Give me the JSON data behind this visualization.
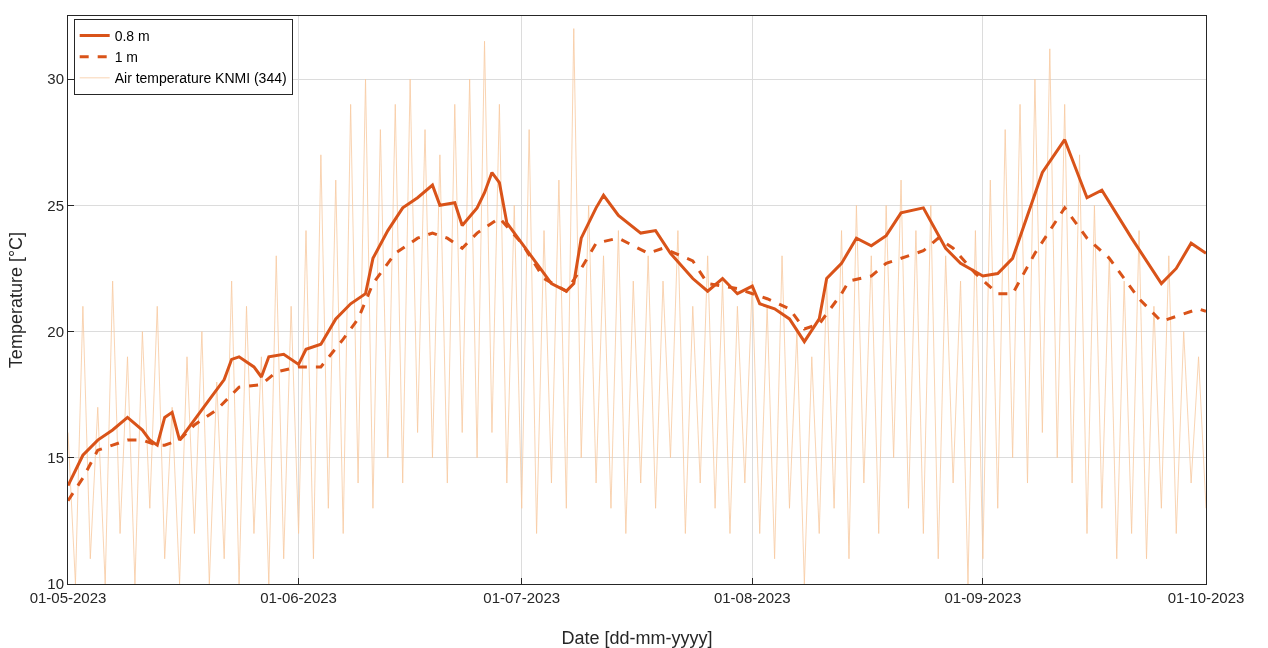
{
  "chart_data": {
    "type": "line",
    "xlabel": "Date [dd-mm-yyyy]",
    "ylabel": "Temperature [°C]",
    "xlim": [
      "2023-05-01",
      "2023-10-01"
    ],
    "xticks": [
      {
        "value": "2023-05-01",
        "label": "01-05-2023"
      },
      {
        "value": "2023-06-01",
        "label": "01-06-2023"
      },
      {
        "value": "2023-07-01",
        "label": "01-07-2023"
      },
      {
        "value": "2023-08-01",
        "label": "01-08-2023"
      },
      {
        "value": "2023-09-01",
        "label": "01-09-2023"
      },
      {
        "value": "2023-10-01",
        "label": "01-10-2023"
      }
    ],
    "ylim": [
      10,
      32.5
    ],
    "yticks": [
      10,
      15,
      20,
      25,
      30
    ],
    "grid": true,
    "legend": "top left",
    "series": [
      {
        "name": "0.8 m",
        "color": "#d95319",
        "line_style": "solid",
        "x": [
          "2023-05-01",
          "2023-05-03",
          "2023-05-05",
          "2023-05-07",
          "2023-05-09",
          "2023-05-11",
          "2023-05-12",
          "2023-05-13",
          "2023-05-14",
          "2023-05-15",
          "2023-05-16",
          "2023-05-18",
          "2023-05-20",
          "2023-05-22",
          "2023-05-23",
          "2023-05-24",
          "2023-05-26",
          "2023-05-27",
          "2023-05-28",
          "2023-05-30",
          "2023-06-01",
          "2023-06-02",
          "2023-06-04",
          "2023-06-06",
          "2023-06-08",
          "2023-06-10",
          "2023-06-11",
          "2023-06-13",
          "2023-06-15",
          "2023-06-17",
          "2023-06-19",
          "2023-06-20",
          "2023-06-22",
          "2023-06-23",
          "2023-06-25",
          "2023-06-26",
          "2023-06-27",
          "2023-06-28",
          "2023-06-29",
          "2023-07-01",
          "2023-07-03",
          "2023-07-05",
          "2023-07-07",
          "2023-07-08",
          "2023-07-09",
          "2023-07-11",
          "2023-07-12",
          "2023-07-14",
          "2023-07-17",
          "2023-07-19",
          "2023-07-21",
          "2023-07-24",
          "2023-07-26",
          "2023-07-28",
          "2023-07-30",
          "2023-08-01",
          "2023-08-02",
          "2023-08-04",
          "2023-08-06",
          "2023-08-08",
          "2023-08-10",
          "2023-08-11",
          "2023-08-13",
          "2023-08-15",
          "2023-08-17",
          "2023-08-19",
          "2023-08-21",
          "2023-08-24",
          "2023-08-27",
          "2023-08-29",
          "2023-09-01",
          "2023-09-03",
          "2023-09-05",
          "2023-09-09",
          "2023-09-12",
          "2023-09-15",
          "2023-09-17",
          "2023-09-21",
          "2023-09-25",
          "2023-09-27",
          "2023-09-29",
          "2023-10-01"
        ],
        "values": [
          13.9,
          15.1,
          15.7,
          16.1,
          16.6,
          16.1,
          15.7,
          15.5,
          16.6,
          16.8,
          15.7,
          16.5,
          17.3,
          18.1,
          18.9,
          19.0,
          18.6,
          18.2,
          19.0,
          19.1,
          18.7,
          19.3,
          19.5,
          20.5,
          21.1,
          21.5,
          22.9,
          24.0,
          24.9,
          25.3,
          25.8,
          25.0,
          25.1,
          24.2,
          24.9,
          25.5,
          26.3,
          25.9,
          24.3,
          23.5,
          22.7,
          21.9,
          21.6,
          21.9,
          23.7,
          24.9,
          25.4,
          24.6,
          23.9,
          24.0,
          23.1,
          22.1,
          21.6,
          22.1,
          21.5,
          21.8,
          21.1,
          20.9,
          20.5,
          19.6,
          20.5,
          22.1,
          22.7,
          23.7,
          23.4,
          23.8,
          24.7,
          24.9,
          23.3,
          22.7,
          22.2,
          22.3,
          22.9,
          26.3,
          27.6,
          25.3,
          25.6,
          23.7,
          21.9,
          22.5,
          23.5,
          23.1
        ]
      },
      {
        "name": "1 m",
        "color": "#d95319",
        "line_style": "dashed",
        "x": [
          "2023-05-01",
          "2023-05-03",
          "2023-05-05",
          "2023-05-09",
          "2023-05-11",
          "2023-05-13",
          "2023-05-14",
          "2023-05-16",
          "2023-05-18",
          "2023-05-21",
          "2023-05-24",
          "2023-05-27",
          "2023-05-29",
          "2023-06-01",
          "2023-06-04",
          "2023-06-07",
          "2023-06-09",
          "2023-06-11",
          "2023-06-14",
          "2023-06-17",
          "2023-06-19",
          "2023-06-21",
          "2023-06-23",
          "2023-06-25",
          "2023-06-28",
          "2023-07-01",
          "2023-07-04",
          "2023-07-07",
          "2023-07-09",
          "2023-07-11",
          "2023-07-14",
          "2023-07-18",
          "2023-07-20",
          "2023-07-24",
          "2023-07-26",
          "2023-07-30",
          "2023-08-03",
          "2023-08-06",
          "2023-08-08",
          "2023-08-10",
          "2023-08-13",
          "2023-08-14",
          "2023-08-17",
          "2023-08-19",
          "2023-08-24",
          "2023-08-26",
          "2023-08-28",
          "2023-08-31",
          "2023-09-03",
          "2023-09-05",
          "2023-09-08",
          "2023-09-12",
          "2023-09-15",
          "2023-09-18",
          "2023-09-22",
          "2023-09-25",
          "2023-09-30",
          "2023-10-01"
        ],
        "values": [
          13.3,
          14.2,
          15.3,
          15.7,
          15.7,
          15.5,
          15.5,
          15.7,
          16.3,
          16.9,
          17.8,
          17.9,
          18.4,
          18.6,
          18.6,
          19.7,
          20.5,
          21.9,
          23.1,
          23.7,
          23.9,
          23.7,
          23.3,
          23.9,
          24.5,
          23.5,
          22.1,
          21.6,
          22.5,
          23.5,
          23.7,
          23.1,
          23.3,
          22.8,
          21.9,
          21.7,
          21.3,
          20.9,
          20.1,
          20.3,
          21.5,
          22.0,
          22.2,
          22.7,
          23.2,
          23.7,
          23.3,
          22.3,
          21.5,
          21.5,
          23.1,
          24.9,
          23.7,
          22.9,
          21.3,
          20.4,
          20.9,
          20.8
        ]
      },
      {
        "name": "Air temperature KNMI (344)",
        "color": "#f7c9a0",
        "line_style": "solid",
        "x": [
          "2023-05-01",
          "2023-05-02",
          "2023-05-03",
          "2023-05-04",
          "2023-05-05",
          "2023-05-06",
          "2023-05-07",
          "2023-05-08",
          "2023-05-09",
          "2023-05-10",
          "2023-05-11",
          "2023-05-12",
          "2023-05-13",
          "2023-05-14",
          "2023-05-15",
          "2023-05-16",
          "2023-05-17",
          "2023-05-18",
          "2023-05-19",
          "2023-05-20",
          "2023-05-21",
          "2023-05-22",
          "2023-05-23",
          "2023-05-24",
          "2023-05-25",
          "2023-05-26",
          "2023-05-27",
          "2023-05-28",
          "2023-05-29",
          "2023-05-30",
          "2023-05-31",
          "2023-06-01",
          "2023-06-02",
          "2023-06-03",
          "2023-06-04",
          "2023-06-05",
          "2023-06-06",
          "2023-06-07",
          "2023-06-08",
          "2023-06-09",
          "2023-06-10",
          "2023-06-11",
          "2023-06-12",
          "2023-06-13",
          "2023-06-14",
          "2023-06-15",
          "2023-06-16",
          "2023-06-17",
          "2023-06-18",
          "2023-06-19",
          "2023-06-20",
          "2023-06-21",
          "2023-06-22",
          "2023-06-23",
          "2023-06-24",
          "2023-06-25",
          "2023-06-26",
          "2023-06-27",
          "2023-06-28",
          "2023-06-29",
          "2023-06-30",
          "2023-07-01",
          "2023-07-02",
          "2023-07-03",
          "2023-07-04",
          "2023-07-05",
          "2023-07-06",
          "2023-07-07",
          "2023-07-08",
          "2023-07-09",
          "2023-07-10",
          "2023-07-11",
          "2023-07-12",
          "2023-07-13",
          "2023-07-14",
          "2023-07-15",
          "2023-07-16",
          "2023-07-17",
          "2023-07-18",
          "2023-07-19",
          "2023-07-20",
          "2023-07-21",
          "2023-07-22",
          "2023-07-23",
          "2023-07-24",
          "2023-07-25",
          "2023-07-26",
          "2023-07-27",
          "2023-07-28",
          "2023-07-29",
          "2023-07-30",
          "2023-07-31",
          "2023-08-01",
          "2023-08-02",
          "2023-08-03",
          "2023-08-04",
          "2023-08-05",
          "2023-08-06",
          "2023-08-07",
          "2023-08-08",
          "2023-08-09",
          "2023-08-10",
          "2023-08-11",
          "2023-08-12",
          "2023-08-13",
          "2023-08-14",
          "2023-08-15",
          "2023-08-16",
          "2023-08-17",
          "2023-08-18",
          "2023-08-19",
          "2023-08-20",
          "2023-08-21",
          "2023-08-22",
          "2023-08-23",
          "2023-08-24",
          "2023-08-25",
          "2023-08-26",
          "2023-08-27",
          "2023-08-28",
          "2023-08-29",
          "2023-08-30",
          "2023-08-31",
          "2023-09-01",
          "2023-09-02",
          "2023-09-03",
          "2023-09-04",
          "2023-09-05",
          "2023-09-06",
          "2023-09-07",
          "2023-09-08",
          "2023-09-09",
          "2023-09-10",
          "2023-09-11",
          "2023-09-12",
          "2023-09-13",
          "2023-09-14",
          "2023-09-15",
          "2023-09-16",
          "2023-09-17",
          "2023-09-18",
          "2023-09-19",
          "2023-09-20",
          "2023-09-21",
          "2023-09-22",
          "2023-09-23",
          "2023-09-24",
          "2023-09-25",
          "2023-09-26",
          "2023-09-27",
          "2023-09-28",
          "2023-09-29",
          "2023-09-30",
          "2023-10-01"
        ],
        "values": [
          16,
          10,
          21,
          11,
          17,
          10,
          22,
          12,
          19,
          10,
          20,
          13,
          21,
          11,
          17,
          10,
          19,
          12,
          20,
          10,
          18,
          11,
          22,
          10,
          21,
          12,
          19,
          10,
          23,
          11,
          21,
          12,
          24,
          11,
          27,
          13,
          26,
          12,
          29,
          14,
          30,
          13,
          28,
          15,
          29,
          14,
          30,
          16,
          28,
          15,
          27,
          14,
          29,
          16,
          30,
          15,
          31.5,
          16,
          29,
          14,
          25,
          13,
          28,
          12,
          24,
          14,
          26,
          13,
          32,
          15,
          25,
          14,
          23,
          13,
          24,
          12,
          22,
          14,
          23,
          13,
          22,
          15,
          24,
          12,
          21,
          14,
          23,
          13,
          22,
          12,
          21,
          14,
          22,
          12,
          21,
          11,
          23,
          13,
          20,
          10,
          19,
          12,
          22,
          13,
          24,
          11,
          25,
          14,
          23,
          12,
          25,
          15,
          26,
          13,
          24,
          12,
          25,
          11,
          23,
          14,
          22,
          10,
          24,
          11,
          26,
          13,
          28,
          15,
          29,
          14,
          30,
          16,
          31.2,
          15,
          29,
          14,
          27,
          12,
          25,
          13,
          23,
          11,
          22,
          12,
          24,
          11,
          21,
          13,
          23,
          12,
          20,
          14,
          19,
          13
        ]
      }
    ]
  }
}
